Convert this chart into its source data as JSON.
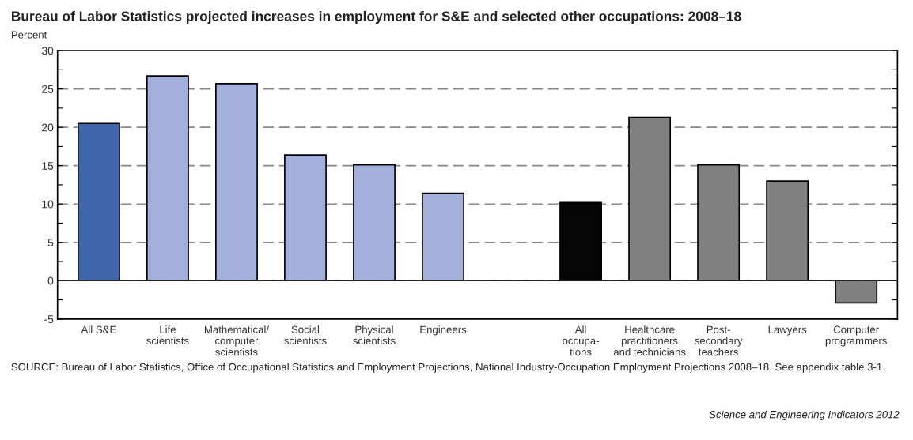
{
  "chart_data": {
    "type": "bar",
    "title": "Bureau of Labor Statistics projected increases in employment for S&E and selected other occupations: 2008–18",
    "ylabel": "Percent",
    "categories": [
      "All S&E",
      "Life\nscientists",
      "Mathematical/\ncomputer\nscientists",
      "Social\nscientists",
      "Physical\nscientists",
      "Engineers",
      null,
      "All\noccupa-\ntions",
      "Healthcare\npractitioners\nand technicians",
      "Post-\nsecondary\nteachers",
      "Lawyers",
      "Computer\nprogrammers"
    ],
    "values": [
      20.5,
      26.7,
      25.7,
      16.4,
      15.1,
      11.4,
      null,
      10.2,
      21.3,
      15.1,
      13.0,
      -2.9
    ],
    "colors": [
      "#3f65ad",
      "#a4b0dc",
      "#a4b0dc",
      "#a4b0dc",
      "#a4b0dc",
      "#a4b0dc",
      null,
      "#050505",
      "#808080",
      "#808080",
      "#808080",
      "#808080"
    ],
    "ylim": [
      -5,
      30
    ],
    "yticks": [
      -5,
      {
        "value": -2.5,
        "label": null
      },
      0,
      {
        "value": 2.5,
        "label": null
      },
      5,
      {
        "value": 7.5,
        "label": null
      },
      10,
      {
        "value": 12.5,
        "label": null
      },
      15,
      {
        "value": 17.5,
        "label": null
      },
      20,
      {
        "value": 22.5,
        "label": null
      },
      25,
      {
        "value": 27.5,
        "label": null
      },
      30
    ],
    "grid": "y",
    "annotations": [
      "SOURCE: Bureau of Labor Statistics, Office of Occupational Statistics and Employment Projections, National Industry-Occupation Employment Projections 2008–18. See appendix table 3-1.",
      "Science and Engineering Indicators 2012"
    ]
  }
}
